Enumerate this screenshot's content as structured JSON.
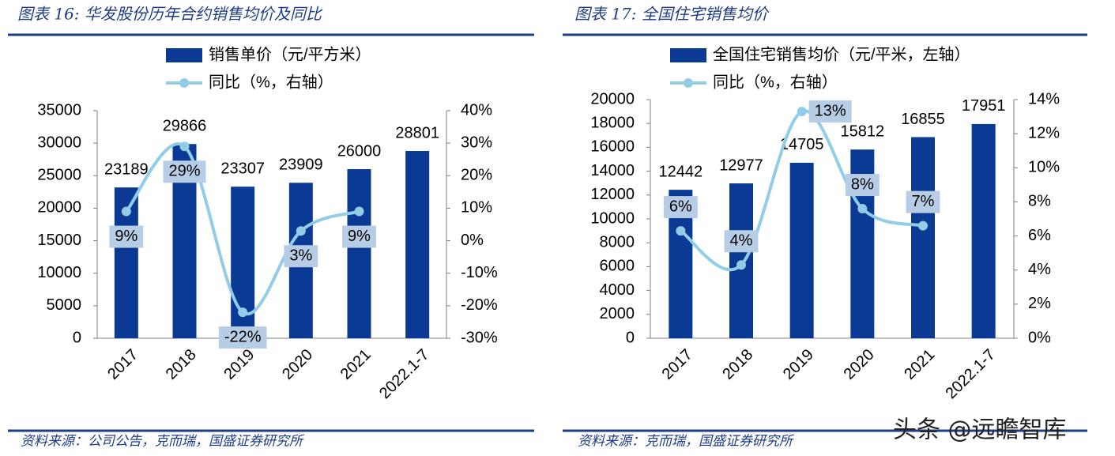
{
  "chart_data": [
    {
      "type": "bar-line",
      "title": "图表 16: 华发股份历年合约销售均价及同比",
      "categories": [
        "2017",
        "2018",
        "2019",
        "2020",
        "2021",
        "2022.1-7"
      ],
      "series": [
        {
          "name": "销售单价（元/平方米）",
          "color": "#0a3a94",
          "values": [
            23189,
            29866,
            23307,
            23909,
            26000,
            28801
          ]
        },
        {
          "name": "同比（%，右轴）",
          "color": "#92cde8",
          "axis": "y2",
          "values": [
            9,
            29,
            -22,
            3,
            9,
            null
          ],
          "value_labels": [
            "9%",
            "29%",
            "-22%",
            "3%",
            "9%",
            null
          ],
          "label_fill": "#b7cde6"
        }
      ],
      "ylim": [
        0,
        35000
      ],
      "yticks": [
        0,
        5000,
        10000,
        15000,
        20000,
        25000,
        30000,
        35000
      ],
      "y2lim": [
        -30,
        40
      ],
      "y2ticks": [
        {
          "value": -30,
          "label": "-30%"
        },
        {
          "value": -20,
          "label": "-20%"
        },
        {
          "value": -10,
          "label": "-10%"
        },
        {
          "value": 0,
          "label": "0%"
        },
        {
          "value": 10,
          "label": "10%"
        },
        {
          "value": 20,
          "label": "20%"
        },
        {
          "value": 30,
          "label": "30%"
        },
        {
          "value": 40,
          "label": "40%"
        }
      ],
      "source": "资料来源：公司公告，克而瑞，国盛证券研究所"
    },
    {
      "type": "bar-line",
      "title": "图表 17: 全国住宅销售均价",
      "categories": [
        "2017",
        "2018",
        "2019",
        "2020",
        "2021",
        "2022.1-7"
      ],
      "series": [
        {
          "name": "全国住宅销售均价（元/平米，左轴）",
          "color": "#0a3a94",
          "values": [
            12442,
            12977,
            14705,
            15812,
            16855,
            17951
          ]
        },
        {
          "name": "同比（%，右轴）",
          "color": "#92cde8",
          "axis": "y2",
          "values": [
            6.3,
            4.3,
            13.3,
            7.6,
            6.6,
            null
          ],
          "value_labels": [
            "6%",
            "4%",
            "13%",
            "8%",
            "7%",
            null
          ],
          "label_fill": "#b7cde6"
        }
      ],
      "ylim": [
        0,
        20000
      ],
      "yticks": [
        0,
        2000,
        4000,
        6000,
        8000,
        10000,
        12000,
        14000,
        16000,
        18000,
        20000
      ],
      "y2lim": [
        0,
        14
      ],
      "y2ticks": [
        {
          "value": 0,
          "label": "0%"
        },
        {
          "value": 2,
          "label": "2%"
        },
        {
          "value": 4,
          "label": "4%"
        },
        {
          "value": 6,
          "label": "6%"
        },
        {
          "value": 8,
          "label": "8%"
        },
        {
          "value": 10,
          "label": "10%"
        },
        {
          "value": 12,
          "label": "12%"
        },
        {
          "value": 14,
          "label": "14%"
        }
      ],
      "source": "资料来源：克而瑞，国盛证券研究所"
    }
  ],
  "watermark": "头条 @远瞻智库"
}
